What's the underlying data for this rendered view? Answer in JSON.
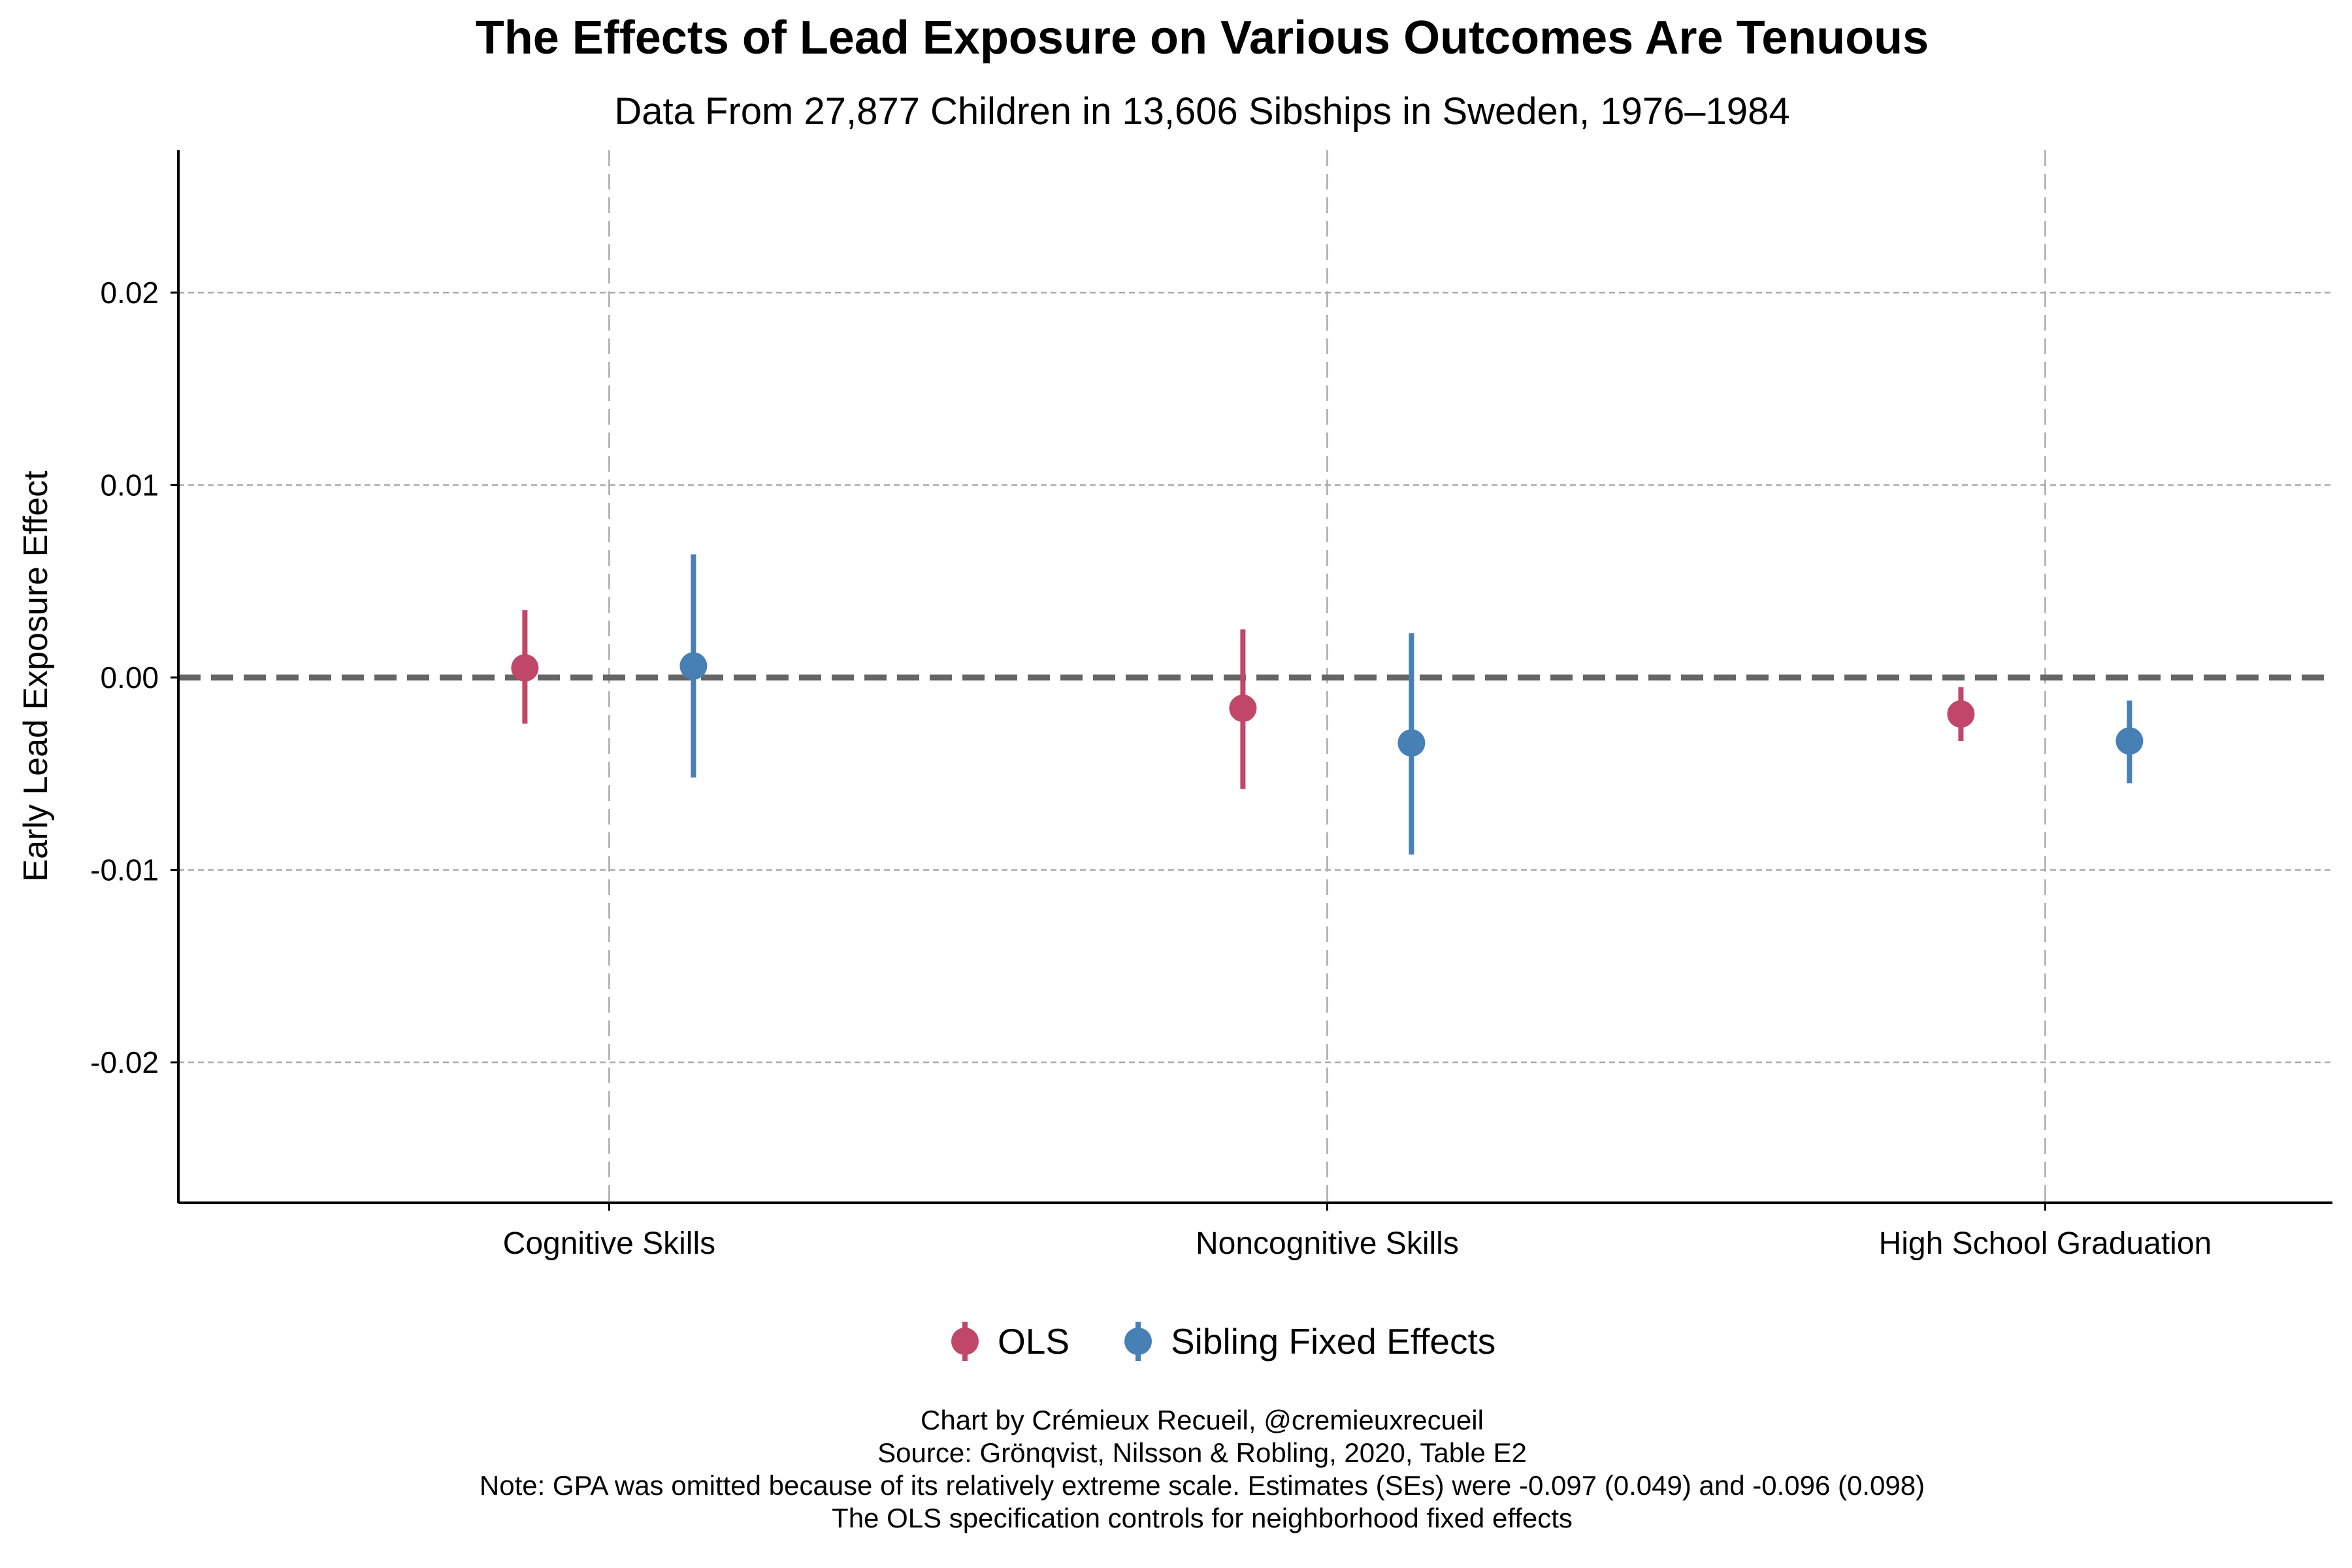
{
  "chart_data": {
    "type": "scatter",
    "title": "The Effects of Lead Exposure on Various Outcomes Are Tenuous",
    "subtitle": "Data From 27,877 Children in 13,606 Sibships in Sweden, 1976–1984",
    "xlabel": "",
    "ylabel": "Early Lead Exposure Effect",
    "categories": [
      "Cognitive Skills",
      "Noncognitive Skills",
      "High School Graduation"
    ],
    "ylim": [
      -0.0273,
      0.0274
    ],
    "yticks": [
      -0.02,
      -0.01,
      0.0,
      0.01,
      0.02
    ],
    "ytick_labels": [
      "-0.02",
      "-0.01",
      "0.00",
      "0.01",
      "0.02"
    ],
    "grid": true,
    "reference_line": 0,
    "legend_position": "bottom-center",
    "series": [
      {
        "name": "OLS",
        "color": "#C0476A",
        "values": [
          0.0005,
          -0.0016,
          -0.0019
        ],
        "lower": [
          -0.0024,
          -0.0058,
          -0.0033
        ],
        "upper": [
          0.0035,
          0.0025,
          -0.0005
        ]
      },
      {
        "name": "Sibling Fixed Effects",
        "color": "#4680B5",
        "values": [
          0.0006,
          -0.0034,
          -0.0033
        ],
        "lower": [
          -0.0052,
          -0.0092,
          -0.0055
        ],
        "upper": [
          0.0064,
          0.0023,
          -0.0012
        ]
      }
    ],
    "notes": [
      "Chart by Crémieux Recueil, @cremieuxrecueil",
      "Source: Grönqvist, Nilsson & Robling, 2020, Table E2",
      "Note: GPA was omitted because of its relatively extreme scale. Estimates (SEs) were -0.097 (0.049) and -0.096 (0.098)",
      "The OLS specification controls for neighborhood fixed effects"
    ]
  }
}
